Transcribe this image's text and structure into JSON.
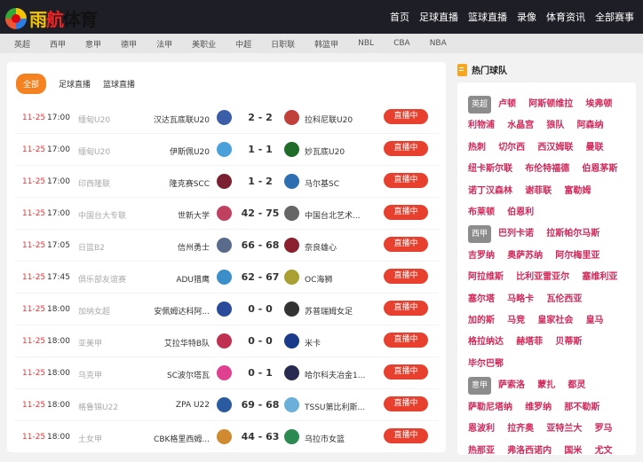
{
  "header": {
    "logo_text": "雨航体育",
    "nav": [
      "首页",
      "足球直播",
      "篮球直播",
      "录像",
      "体育资讯",
      "全部赛事"
    ]
  },
  "subnav": [
    "英超",
    "西甲",
    "意甲",
    "德甲",
    "法甲",
    "美职业",
    "中超",
    "日职联",
    "韩篮甲",
    "NBL",
    "CBA",
    "NBA"
  ],
  "tabs": [
    "全部",
    "足球直播",
    "篮球直播"
  ],
  "live_label": "直播中",
  "matches": [
    {
      "date": "11-25",
      "time": "17:00",
      "league": "缅甸U20",
      "home": "汉达瓦底联U20",
      "score": "2 - 2",
      "away": "拉科尼联U20",
      "hc": "#3b5ea8",
      "ac": "#c0403a"
    },
    {
      "date": "11-25",
      "time": "17:00",
      "league": "缅甸U20",
      "home": "伊斯佩U20",
      "score": "1 - 1",
      "away": "妙瓦底U20",
      "hc": "#4aa0d8",
      "ac": "#1f6b2a"
    },
    {
      "date": "11-25",
      "time": "17:00",
      "league": "印西隆联",
      "home": "隆克赛SCC",
      "score": "1 - 2",
      "away": "马尔基SC",
      "hc": "#7a2030",
      "ac": "#2d6fb0"
    },
    {
      "date": "11-25",
      "time": "17:00",
      "league": "中国台大专联",
      "home": "世新大学",
      "score": "42 - 75",
      "away": "中国台北艺术...",
      "hc": "#c04060",
      "ac": "#666"
    },
    {
      "date": "11-25",
      "time": "17:05",
      "league": "日篮B2",
      "home": "信州勇士",
      "score": "66 - 68",
      "away": "奈良雄心",
      "hc": "#5a6a8a",
      "ac": "#8a2030"
    },
    {
      "date": "11-25",
      "time": "17:45",
      "league": "俱乐部友谊赛",
      "home": "ADU猎鹰",
      "score": "62 - 67",
      "away": "OC海狮",
      "hc": "#3a8fc8",
      "ac": "#a8a030"
    },
    {
      "date": "11-25",
      "time": "18:00",
      "league": "加纳女超",
      "home": "安佩姆达科阿...",
      "score": "0 - 0",
      "away": "苏普瑞姆女足",
      "hc": "#2a4a9a",
      "ac": "#333"
    },
    {
      "date": "11-25",
      "time": "18:00",
      "league": "亚美甲",
      "home": "艾拉华特B队",
      "score": "0 - 0",
      "away": "米卡",
      "hc": "#c03050",
      "ac": "#1a3a8a"
    },
    {
      "date": "11-25",
      "time": "18:00",
      "league": "乌克甲",
      "home": "SC波尔塔瓦",
      "score": "0 - 1",
      "away": "哈尔科夫冶金1...",
      "hc": "#e04090",
      "ac": "#2a2a50"
    },
    {
      "date": "11-25",
      "time": "18:00",
      "league": "格鲁锦U22",
      "home": "ZPA U22",
      "score": "69 - 68",
      "away": "TSSU第比利斯...",
      "hc": "#2a5aa0",
      "ac": "#6ab0d8"
    },
    {
      "date": "11-25",
      "time": "18:00",
      "league": "土女甲",
      "home": "CBK格里西姆...",
      "score": "44 - 63",
      "away": "乌拉市女篮",
      "hc": "#d08a30",
      "ac": "#2a8a50"
    }
  ],
  "sidebar": {
    "title": "热门球队",
    "groups": [
      {
        "league": "英超",
        "teams": [
          "卢顿",
          "阿斯顿维拉",
          "埃弗顿",
          "利物浦",
          "水晶宫",
          "狼队",
          "阿森纳",
          "热刺",
          "切尔西",
          "西汉姆联",
          "曼联",
          "纽卡斯尔联",
          "布伦特福德",
          "伯恩茅斯",
          "诺丁汉森林",
          "谢菲联",
          "富勒姆",
          "布莱顿",
          "伯恩利"
        ]
      },
      {
        "league": "西甲",
        "teams": [
          "巴列卡诺",
          "拉斯帕尔马斯",
          "吉罗纳",
          "奥萨苏纳",
          "阿尔梅里亚",
          "阿拉维斯",
          "比利亚雷亚尔",
          "塞维利亚",
          "塞尔塔",
          "马略卡",
          "瓦伦西亚",
          "加的斯",
          "马竞",
          "皇家社会",
          "皇马",
          "格拉纳达",
          "赫塔菲",
          "贝蒂斯",
          "毕尔巴鄂"
        ]
      },
      {
        "league": "意甲",
        "teams": [
          "萨索洛",
          "蒙扎",
          "都灵",
          "萨勒尼塔纳",
          "维罗纳",
          "那不勒斯",
          "恩波利",
          "拉齐奥",
          "亚特兰大",
          "罗马",
          "热那亚",
          "弗洛西诺内",
          "国米",
          "尤文"
        ]
      }
    ]
  }
}
